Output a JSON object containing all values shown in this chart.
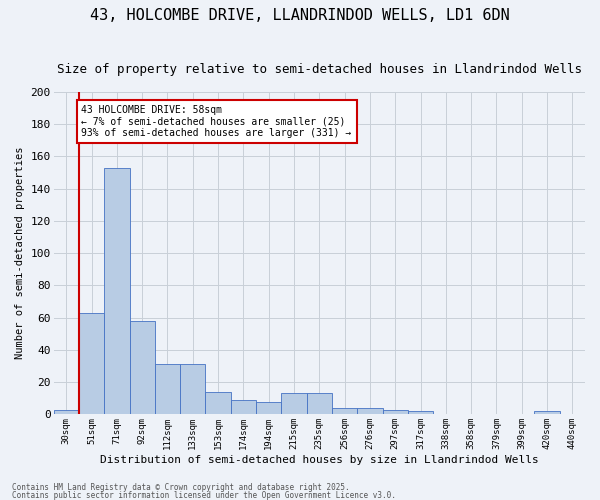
{
  "title1": "43, HOLCOMBE DRIVE, LLANDRINDOD WELLS, LD1 6DN",
  "title2": "Size of property relative to semi-detached houses in Llandrindod Wells",
  "xlabel": "Distribution of semi-detached houses by size in Llandrindod Wells",
  "ylabel": "Number of semi-detached properties",
  "bin_labels": [
    "30sqm",
    "51sqm",
    "71sqm",
    "92sqm",
    "112sqm",
    "133sqm",
    "153sqm",
    "174sqm",
    "194sqm",
    "215sqm",
    "235sqm",
    "256sqm",
    "276sqm",
    "297sqm",
    "317sqm",
    "338sqm",
    "358sqm",
    "379sqm",
    "399sqm",
    "420sqm",
    "440sqm"
  ],
  "bar_values": [
    3,
    63,
    153,
    58,
    31,
    31,
    14,
    9,
    8,
    13,
    13,
    4,
    4,
    3,
    2,
    0,
    0,
    0,
    0,
    2,
    0
  ],
  "bar_color": "#b8cce4",
  "bar_edge_color": "#4472c4",
  "vline_x": 1,
  "vline_color": "#cc0000",
  "annotation_title": "43 HOLCOMBE DRIVE: 58sqm",
  "annotation_line1": "← 7% of semi-detached houses are smaller (25)",
  "annotation_line2": "93% of semi-detached houses are larger (331) →",
  "annotation_box_color": "#ffffff",
  "annotation_box_edge": "#cc0000",
  "ylim": [
    0,
    200
  ],
  "yticks": [
    0,
    20,
    40,
    60,
    80,
    100,
    120,
    140,
    160,
    180,
    200
  ],
  "footer1": "Contains HM Land Registry data © Crown copyright and database right 2025.",
  "footer2": "Contains public sector information licensed under the Open Government Licence v3.0.",
  "bg_color": "#eef2f8",
  "title_fontsize": 11,
  "subtitle_fontsize": 9
}
